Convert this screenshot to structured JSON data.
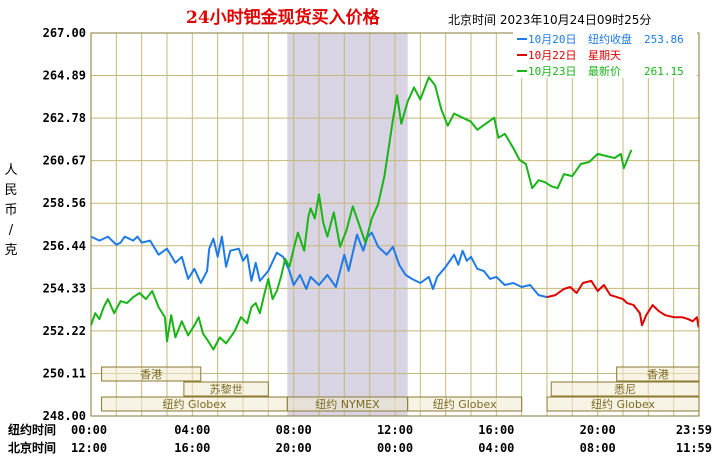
{
  "chart_data": {
    "type": "line",
    "title": "24小时钯金现货买入价格",
    "subtitle": "北京时间  2023年10月24日09时25分",
    "ylabel": "人民币/克",
    "ylim": [
      248.0,
      267.0
    ],
    "yticks": [
      "267.00",
      "264.89",
      "262.78",
      "260.67",
      "258.56",
      "256.44",
      "254.33",
      "252.22",
      "250.11",
      "248.00"
    ],
    "xrange": [
      0,
      1440
    ],
    "xticks": [
      {
        "t": 0,
        "ny": "00:00",
        "bj": "12:00"
      },
      {
        "t": 240,
        "ny": "04:00",
        "bj": "16:00"
      },
      {
        "t": 480,
        "ny": "08:00",
        "bj": "20:00"
      },
      {
        "t": 720,
        "ny": "12:00",
        "bj": "00:00"
      },
      {
        "t": 960,
        "ny": "16:00",
        "bj": "04:00"
      },
      {
        "t": 1200,
        "ny": "20:00",
        "bj": "08:00"
      },
      {
        "t": 1439,
        "ny": "23:59",
        "bj": "11:59"
      }
    ],
    "row_labels": {
      "ny": "纽约时间",
      "bj": "北京时间"
    },
    "highlight": [
      465,
      750
    ],
    "grid": true,
    "legend_position": "top-right",
    "legend": [
      {
        "date": "10月20日",
        "label": "纽约收盘",
        "value": "253.86",
        "color": "#1e7be6"
      },
      {
        "date": "10月22日",
        "label": "星期天",
        "value": "",
        "color": "#e00000"
      },
      {
        "date": "10月23日",
        "label": "最新价",
        "value": "261.15",
        "color": "#18b418"
      }
    ],
    "sessions": [
      {
        "label": "香港",
        "row": 0,
        "from": 25,
        "to": 260
      },
      {
        "label": "苏黎世",
        "row": 1,
        "from": 220,
        "to": 420
      },
      {
        "label": "纽约 Globex",
        "row": 2,
        "from": 25,
        "to": 465
      },
      {
        "label": "纽约 NYMEX",
        "row": 2,
        "from": 465,
        "to": 750
      },
      {
        "label": "纽约 Globex",
        "row": 2,
        "from": 750,
        "to": 1020
      },
      {
        "label": "纽约 Globex",
        "row": 2,
        "from": 1080,
        "to": 1440
      },
      {
        "label": "悉尼",
        "row": 1,
        "from": 1090,
        "to": 1440
      },
      {
        "label": "香港",
        "row": 0,
        "from": 1245,
        "to": 1440
      }
    ],
    "series": [
      {
        "name": "10月20日",
        "color": "#1e7be6",
        "points": [
          [
            0,
            256.9
          ],
          [
            20,
            256.7
          ],
          [
            40,
            256.9
          ],
          [
            60,
            256.5
          ],
          [
            70,
            256.6
          ],
          [
            80,
            256.9
          ],
          [
            100,
            256.7
          ],
          [
            110,
            256.9
          ],
          [
            120,
            256.6
          ],
          [
            140,
            256.7
          ],
          [
            160,
            256.0
          ],
          [
            180,
            256.3
          ],
          [
            200,
            255.6
          ],
          [
            215,
            255.9
          ],
          [
            230,
            254.8
          ],
          [
            245,
            255.3
          ],
          [
            260,
            254.6
          ],
          [
            275,
            255.2
          ],
          [
            280,
            256.3
          ],
          [
            290,
            256.8
          ],
          [
            300,
            255.9
          ],
          [
            310,
            256.9
          ],
          [
            320,
            255.4
          ],
          [
            330,
            256.2
          ],
          [
            350,
            256.3
          ],
          [
            360,
            255.7
          ],
          [
            370,
            256.0
          ],
          [
            380,
            254.7
          ],
          [
            390,
            255.6
          ],
          [
            400,
            254.7
          ],
          [
            420,
            255.2
          ],
          [
            440,
            256.1
          ],
          [
            455,
            255.9
          ],
          [
            470,
            255.2
          ],
          [
            480,
            254.5
          ],
          [
            495,
            255.0
          ],
          [
            510,
            254.3
          ],
          [
            520,
            254.9
          ],
          [
            540,
            254.5
          ],
          [
            560,
            255.0
          ],
          [
            580,
            254.4
          ],
          [
            600,
            256.0
          ],
          [
            610,
            255.2
          ],
          [
            630,
            257.0
          ],
          [
            645,
            256.2
          ],
          [
            655,
            256.9
          ],
          [
            665,
            257.1
          ],
          [
            680,
            256.4
          ],
          [
            700,
            256.0
          ],
          [
            715,
            256.4
          ],
          [
            730,
            255.5
          ],
          [
            745,
            255.0
          ],
          [
            760,
            254.8
          ],
          [
            780,
            254.6
          ],
          [
            800,
            254.9
          ],
          [
            810,
            254.3
          ],
          [
            820,
            254.9
          ],
          [
            840,
            255.4
          ],
          [
            860,
            256.0
          ],
          [
            870,
            255.5
          ],
          [
            880,
            256.2
          ],
          [
            890,
            255.7
          ],
          [
            900,
            255.9
          ],
          [
            915,
            255.3
          ],
          [
            930,
            255.2
          ],
          [
            945,
            254.8
          ],
          [
            960,
            254.9
          ],
          [
            980,
            254.5
          ],
          [
            1000,
            254.6
          ],
          [
            1020,
            254.4
          ],
          [
            1040,
            254.5
          ],
          [
            1060,
            254.0
          ],
          [
            1080,
            253.9
          ]
        ]
      },
      {
        "name": "10月22日",
        "color": "#e00000",
        "points": [
          [
            1080,
            253.9
          ],
          [
            1100,
            254.0
          ],
          [
            1120,
            254.3
          ],
          [
            1135,
            254.4
          ],
          [
            1150,
            254.1
          ],
          [
            1165,
            254.6
          ],
          [
            1185,
            254.7
          ],
          [
            1200,
            254.2
          ],
          [
            1215,
            254.5
          ],
          [
            1230,
            254.0
          ],
          [
            1245,
            253.9
          ],
          [
            1260,
            253.8
          ],
          [
            1270,
            253.6
          ],
          [
            1285,
            253.5
          ],
          [
            1300,
            253.1
          ],
          [
            1305,
            252.5
          ],
          [
            1315,
            253.0
          ],
          [
            1330,
            253.5
          ],
          [
            1345,
            253.2
          ],
          [
            1360,
            253.0
          ],
          [
            1380,
            252.9
          ],
          [
            1400,
            252.9
          ],
          [
            1415,
            252.8
          ],
          [
            1425,
            252.7
          ],
          [
            1435,
            252.9
          ],
          [
            1439,
            252.4
          ]
        ]
      },
      {
        "name": "10月23日",
        "color": "#18b418",
        "points": [
          [
            0,
            252.5
          ],
          [
            10,
            253.1
          ],
          [
            20,
            252.8
          ],
          [
            30,
            253.4
          ],
          [
            40,
            253.8
          ],
          [
            55,
            253.1
          ],
          [
            70,
            253.7
          ],
          [
            85,
            253.6
          ],
          [
            100,
            253.9
          ],
          [
            115,
            254.1
          ],
          [
            130,
            253.8
          ],
          [
            145,
            254.2
          ],
          [
            160,
            253.4
          ],
          [
            175,
            252.9
          ],
          [
            180,
            251.7
          ],
          [
            190,
            253.0
          ],
          [
            200,
            251.9
          ],
          [
            215,
            252.7
          ],
          [
            230,
            252.0
          ],
          [
            245,
            252.5
          ],
          [
            255,
            252.9
          ],
          [
            265,
            252.1
          ],
          [
            275,
            251.8
          ],
          [
            290,
            251.3
          ],
          [
            305,
            251.9
          ],
          [
            320,
            251.6
          ],
          [
            340,
            252.2
          ],
          [
            355,
            252.9
          ],
          [
            370,
            252.6
          ],
          [
            380,
            253.4
          ],
          [
            390,
            253.6
          ],
          [
            400,
            253.1
          ],
          [
            410,
            254.0
          ],
          [
            420,
            254.8
          ],
          [
            430,
            253.8
          ],
          [
            440,
            254.2
          ],
          [
            450,
            254.9
          ],
          [
            460,
            255.8
          ],
          [
            470,
            255.4
          ],
          [
            480,
            256.3
          ],
          [
            490,
            257.1
          ],
          [
            505,
            256.2
          ],
          [
            515,
            257.9
          ],
          [
            520,
            258.3
          ],
          [
            530,
            257.8
          ],
          [
            540,
            259.0
          ],
          [
            550,
            257.6
          ],
          [
            560,
            256.9
          ],
          [
            575,
            258.1
          ],
          [
            590,
            256.4
          ],
          [
            605,
            257.2
          ],
          [
            620,
            258.4
          ],
          [
            635,
            257.5
          ],
          [
            650,
            256.6
          ],
          [
            665,
            257.8
          ],
          [
            680,
            258.5
          ],
          [
            695,
            259.9
          ],
          [
            705,
            261.3
          ],
          [
            715,
            262.7
          ],
          [
            725,
            263.9
          ],
          [
            735,
            262.5
          ],
          [
            750,
            263.6
          ],
          [
            765,
            264.3
          ],
          [
            780,
            263.7
          ],
          [
            800,
            264.8
          ],
          [
            815,
            264.4
          ],
          [
            830,
            263.2
          ],
          [
            845,
            262.4
          ],
          [
            860,
            263.0
          ],
          [
            880,
            262.8
          ],
          [
            900,
            262.6
          ],
          [
            915,
            262.2
          ],
          [
            935,
            262.5
          ],
          [
            955,
            262.8
          ],
          [
            965,
            261.8
          ],
          [
            980,
            262.0
          ],
          [
            1000,
            261.3
          ],
          [
            1015,
            260.7
          ],
          [
            1030,
            260.5
          ],
          [
            1045,
            259.3
          ],
          [
            1060,
            259.7
          ],
          [
            1075,
            259.6
          ],
          [
            1090,
            259.4
          ],
          [
            1105,
            259.3
          ],
          [
            1120,
            260.0
          ],
          [
            1140,
            259.9
          ],
          [
            1160,
            260.5
          ],
          [
            1180,
            260.6
          ],
          [
            1200,
            261.0
          ],
          [
            1220,
            260.9
          ],
          [
            1240,
            260.8
          ],
          [
            1255,
            261.0
          ],
          [
            1262,
            260.3
          ],
          [
            1270,
            260.7
          ],
          [
            1280,
            261.2
          ]
        ]
      }
    ]
  }
}
